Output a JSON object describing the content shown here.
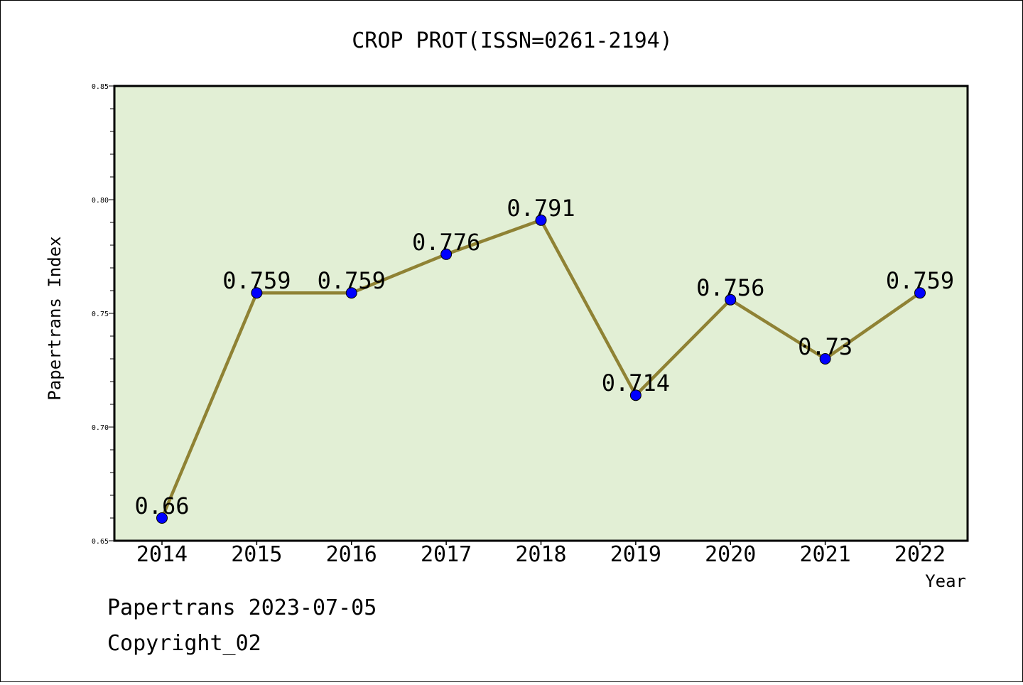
{
  "chart_data": {
    "type": "line",
    "title": "CROP PROT(ISSN=0261-2194)",
    "xlabel": "Year",
    "ylabel": "Papertrans Index",
    "categories": [
      "2014",
      "2015",
      "2016",
      "2017",
      "2018",
      "2019",
      "2020",
      "2021",
      "2022"
    ],
    "series": [
      {
        "values": [
          0.66,
          0.759,
          0.759,
          0.776,
          0.791,
          0.714,
          0.756,
          0.73,
          0.759
        ],
        "labels": [
          "0.66",
          "0.759",
          "0.759",
          "0.776",
          "0.791",
          "0.714",
          "0.756",
          "0.73",
          "0.759"
        ]
      }
    ],
    "ylim": [
      0.65,
      0.85
    ],
    "yticks": [
      "0.65",
      "0.70",
      "0.75",
      "0.80",
      "0.85"
    ],
    "grid": false,
    "colors": {
      "plot_background": "#e2efd5",
      "line": "#8f8234",
      "marker": "#0000ff"
    }
  },
  "footer": {
    "date_text": "Papertrans 2023-07-05",
    "copyright_text": "Copyright_02"
  }
}
